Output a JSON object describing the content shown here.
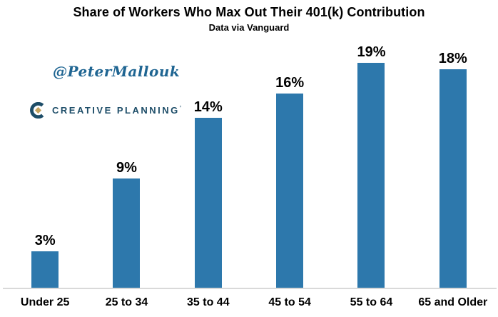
{
  "chart_data": {
    "type": "bar",
    "title": "Share of Workers Who Max Out Their 401(k) Contribution",
    "subtitle": "Data via Vanguard",
    "categories": [
      "Under 25",
      "25 to 34",
      "35 to 44",
      "45 to 54",
      "55 to 64",
      "65 and Older"
    ],
    "values": [
      3,
      9,
      14,
      16,
      19,
      18
    ],
    "value_labels": [
      "3%",
      "9%",
      "14%",
      "16%",
      "19%",
      "18%"
    ],
    "xlabel": "",
    "ylabel": "",
    "ylim": [
      0,
      20
    ],
    "grid": false,
    "legend": false,
    "data_labels_position": "above",
    "bar_color": "#2d78ac",
    "axis_line_color": "#d9d9d9",
    "text_color": "#000000"
  },
  "watermarks": {
    "twitter_handle": "@PeterMallouk",
    "twitter_handle_color": "#1f6592",
    "logo_text": "CREATIVE PLANNING",
    "logo_mark": "’",
    "logo_navy": "#1d4d68",
    "logo_gold": "#c5a35e"
  }
}
